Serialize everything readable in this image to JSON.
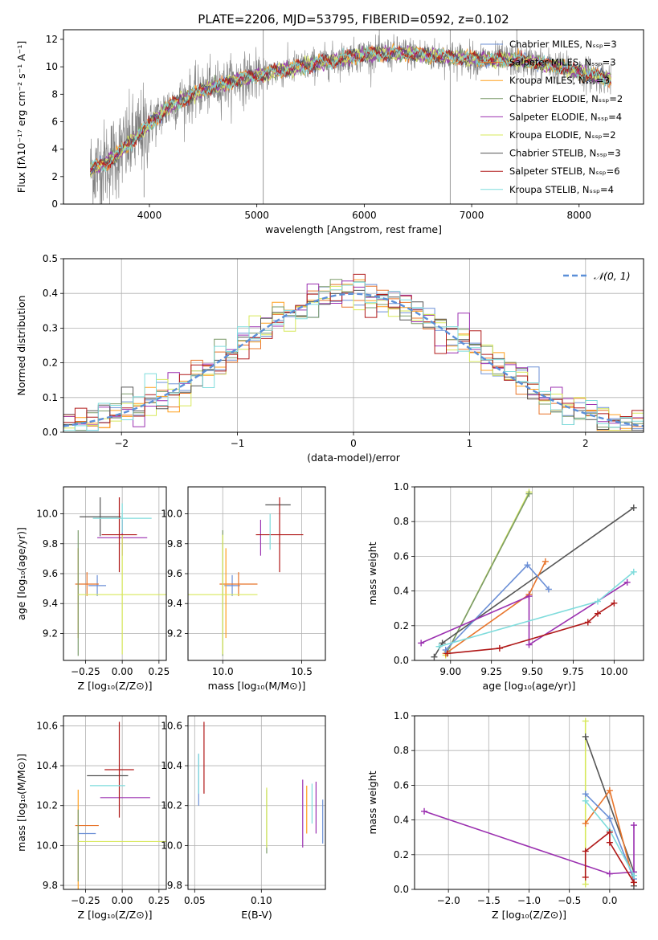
{
  "colors": {
    "chabrier_miles": "#6b8fd6",
    "salpeter_miles": "#e8742a",
    "kroupa_miles": "#ff9f1c",
    "chabrier_elodie": "#7a9a68",
    "salpeter_elodie": "#9b30b0",
    "kroupa_elodie": "#d7e85a",
    "chabrier_stelib": "#555555",
    "salpeter_stelib": "#b01818",
    "kroupa_stelib": "#7fdcdc",
    "normal_curve": "#5b8fd8",
    "grid": "#b0b0b0"
  },
  "chart_data": [
    {
      "id": "spectrum",
      "type": "line",
      "title": "PLATE=2206, MJD=53795, FIBERID=0592, z=0.102",
      "xlabel": "wavelength [Angstrom, rest frame]",
      "ylabel": "Flux [fλ10⁻¹⁷ erg cm⁻² s⁻¹ A⁻¹]",
      "xlim": [
        3200,
        8600
      ],
      "ylim": [
        0,
        12.7
      ],
      "xticks": [
        "4000",
        "5000",
        "6000",
        "7000",
        "8000"
      ],
      "yticks": [
        "0",
        "2",
        "4",
        "6",
        "8",
        "10",
        "12"
      ],
      "grid": false,
      "legend": "top-right",
      "legend_entries": [
        "Chabrier MILES, Nₛₛₚ=3",
        "Salpeter MILES, Nₛₛₚ=3",
        "Kroupa MILES, Nₛₛₚ=3",
        "Chabrier ELODIE, Nₛₛₚ=2",
        "Salpeter ELODIE, Nₛₛₚ=4",
        "Kroupa ELODIE, Nₛₛₚ=2",
        "Chabrier STELIB, Nₛₛₚ=3",
        "Salpeter STELIB, Nₛₛₚ=6",
        "Kroupa STELIB, Nₛₛₚ=4"
      ],
      "continuum": {
        "x": [
          3450,
          3600,
          3800,
          4000,
          4200,
          4500,
          4800,
          5200,
          5600,
          6000,
          6400,
          6800,
          7200,
          7400,
          7600,
          7800,
          8000,
          8200,
          8300
        ],
        "y": [
          2.5,
          3.0,
          4.3,
          5.8,
          7.2,
          8.3,
          9.0,
          9.7,
          10.3,
          10.9,
          11.0,
          10.7,
          10.5,
          10.5,
          10.3,
          10.0,
          9.6,
          9.3,
          9.1
        ]
      }
    },
    {
      "id": "residuals",
      "type": "histogram",
      "xlabel": "(data-model)/error",
      "ylabel": "Normed distribution",
      "xlim": [
        -2.5,
        2.5
      ],
      "ylim": [
        0,
        0.5
      ],
      "xticks": [
        "−2",
        "−1",
        "0",
        "1",
        "2"
      ],
      "yticks": [
        "0.0",
        "0.1",
        "0.2",
        "0.3",
        "0.4",
        "0.5"
      ],
      "grid": true,
      "legend": "top-right",
      "legend_label": "𝒩(0, 1)",
      "bin_width": 0.1,
      "bin_start": -2.5
    },
    {
      "id": "age-Z",
      "type": "errorbar",
      "xlabel": "Z [log₁₀(Z/Z⊙)]",
      "ylabel": "age  [log₁₀(age/yr)]",
      "xlim": [
        -0.4,
        0.3
      ],
      "ylim": [
        9.02,
        10.18
      ],
      "xticks": [
        "−0.25",
        "0.00",
        "0.25"
      ],
      "yticks": [
        "9.2",
        "9.4",
        "9.6",
        "9.8",
        "10.0"
      ],
      "grid": true,
      "points": [
        {
          "model": "chabrier_miles",
          "x": -0.17,
          "xerr": 0.06,
          "y": 9.52,
          "yerr": 0.07
        },
        {
          "model": "salpeter_miles",
          "x": -0.24,
          "xerr": 0.08,
          "y": 9.53,
          "yerr": 0.08
        },
        {
          "model": "kroupa_miles",
          "x": -0.3,
          "xerr": 0.0,
          "y": 9.47,
          "yerr": 0.3
        },
        {
          "model": "chabrier_elodie",
          "x": -0.3,
          "xerr": 0.0,
          "y": 9.47,
          "yerr": 0.42
        },
        {
          "model": "salpeter_elodie",
          "x": 0.0,
          "xerr": 0.17,
          "y": 9.84,
          "yerr": 0.12
        },
        {
          "model": "kroupa_elodie",
          "x": 0.0,
          "xerr": 0.3,
          "y": 9.46,
          "yerr": 0.4
        },
        {
          "model": "chabrier_stelib",
          "x": -0.15,
          "xerr": 0.14,
          "y": 9.98,
          "yerr": 0.13
        },
        {
          "model": "salpeter_stelib",
          "x": -0.02,
          "xerr": 0.12,
          "y": 9.86,
          "yerr": 0.25
        },
        {
          "model": "kroupa_stelib",
          "x": 0.0,
          "xerr": 0.2,
          "y": 9.97,
          "yerr": 0.1
        }
      ]
    },
    {
      "id": "age-mass",
      "type": "errorbar",
      "xlabel": "mass [log₁₀(M/M⊙)]",
      "ylabel": "",
      "xlim": [
        9.78,
        10.65
      ],
      "ylim": [
        9.02,
        10.18
      ],
      "xticks": [
        "10.0",
        "10.5"
      ],
      "yticks": [
        "9.2",
        "9.4",
        "9.6",
        "9.8",
        "10.0"
      ],
      "grid": true,
      "points": [
        {
          "model": "chabrier_miles",
          "x": 10.06,
          "xerr": 0.05,
          "y": 9.52,
          "yerr": 0.07
        },
        {
          "model": "salpeter_miles",
          "x": 10.1,
          "xerr": 0.12,
          "y": 9.53,
          "yerr": 0.08
        },
        {
          "model": "kroupa_miles",
          "x": 10.02,
          "xerr": 0.0,
          "y": 9.47,
          "yerr": 0.3
        },
        {
          "model": "chabrier_elodie",
          "x": 10.0,
          "xerr": 0.0,
          "y": 9.47,
          "yerr": 0.42
        },
        {
          "model": "salpeter_elodie",
          "x": 10.24,
          "xerr": 0.0,
          "y": 9.84,
          "yerr": 0.12
        },
        {
          "model": "kroupa_elodie",
          "x": 10.0,
          "xerr": 0.22,
          "y": 9.46,
          "yerr": 0.4
        },
        {
          "model": "chabrier_stelib",
          "x": 10.35,
          "xerr": 0.08,
          "y": 10.06,
          "yerr": 0.0
        },
        {
          "model": "salpeter_stelib",
          "x": 10.36,
          "xerr": 0.15,
          "y": 9.86,
          "yerr": 0.25
        },
        {
          "model": "kroupa_stelib",
          "x": 10.3,
          "xerr": 0.0,
          "y": 9.88,
          "yerr": 0.12
        }
      ]
    },
    {
      "id": "weight-age",
      "type": "line",
      "xlabel": "age  [log₁₀(age/yr)]",
      "ylabel": "mass weight",
      "xlim": [
        8.78,
        10.18
      ],
      "ylim": [
        0,
        1
      ],
      "xticks": [
        "9.00",
        "9.25",
        "9.50",
        "9.75",
        "10.00"
      ],
      "yticks": [
        "0.0",
        "0.2",
        "0.4",
        "0.6",
        "0.8",
        "1.0"
      ],
      "grid": true,
      "series": [
        {
          "model": "kroupa_elodie",
          "x": [
            8.97,
            9.48
          ],
          "y": [
            0.03,
            0.97
          ]
        },
        {
          "model": "chabrier_elodie",
          "x": [
            8.98,
            9.48
          ],
          "y": [
            0.05,
            0.96
          ]
        },
        {
          "model": "chabrier_stelib",
          "x": [
            8.9,
            8.95,
            10.12
          ],
          "y": [
            0.02,
            0.1,
            0.88
          ]
        },
        {
          "model": "salpeter_miles",
          "x": [
            8.97,
            9.48,
            9.58
          ],
          "y": [
            0.04,
            0.38,
            0.57
          ]
        },
        {
          "model": "chabrier_miles",
          "x": [
            8.97,
            9.47,
            9.6
          ],
          "y": [
            0.06,
            0.55,
            0.41
          ]
        },
        {
          "model": "salpeter_elodie",
          "x": [
            8.82,
            9.48,
            9.48,
            10.08
          ],
          "y": [
            0.1,
            0.37,
            0.09,
            0.45
          ]
        },
        {
          "model": "kroupa_stelib",
          "x": [
            8.93,
            9.9,
            10.12
          ],
          "y": [
            0.08,
            0.34,
            0.51
          ]
        },
        {
          "model": "salpeter_stelib",
          "x": [
            8.98,
            9.3,
            9.84,
            9.9,
            10.0
          ],
          "y": [
            0.04,
            0.07,
            0.22,
            0.27,
            0.33
          ]
        }
      ]
    },
    {
      "id": "mass-Z",
      "type": "errorbar",
      "xlabel": "Z [log₁₀(Z/Z⊙)]",
      "ylabel": "mass [log₁₀(M/M⊙)]",
      "xlim": [
        -0.4,
        0.3
      ],
      "ylim": [
        9.78,
        10.65
      ],
      "xticks": [
        "−0.25",
        "0.00",
        "0.25"
      ],
      "yticks": [
        "9.8",
        "10.0",
        "10.2",
        "10.4",
        "10.6"
      ],
      "grid": true,
      "points": [
        {
          "model": "chabrier_miles",
          "x": -0.24,
          "xerr": 0.06,
          "y": 10.06,
          "yerr": 0.0
        },
        {
          "model": "salpeter_miles",
          "x": -0.24,
          "xerr": 0.08,
          "y": 10.1,
          "yerr": 0.0
        },
        {
          "model": "kroupa_miles",
          "x": -0.3,
          "xerr": 0.0,
          "y": 10.02,
          "yerr": 0.26
        },
        {
          "model": "chabrier_elodie",
          "x": -0.3,
          "xerr": 0.0,
          "y": 10.0,
          "yerr": 0.18
        },
        {
          "model": "salpeter_elodie",
          "x": 0.02,
          "xerr": 0.17,
          "y": 10.24,
          "yerr": 0.0
        },
        {
          "model": "kroupa_elodie",
          "x": 0.0,
          "xerr": 0.3,
          "y": 10.02,
          "yerr": 0.0
        },
        {
          "model": "chabrier_stelib",
          "x": -0.1,
          "xerr": 0.14,
          "y": 10.35,
          "yerr": 0.0
        },
        {
          "model": "salpeter_stelib",
          "x": -0.02,
          "xerr": 0.1,
          "y": 10.38,
          "yerr": 0.24
        },
        {
          "model": "kroupa_stelib",
          "x": -0.1,
          "xerr": 0.12,
          "y": 10.3,
          "yerr": 0.0
        }
      ]
    },
    {
      "id": "mass-EBV",
      "type": "errorbar",
      "xlabel": "E(B-V)",
      "ylabel": "",
      "xlim": [
        0.045,
        0.148
      ],
      "ylim": [
        9.78,
        10.65
      ],
      "xticks": [
        "0.05",
        "0.10"
      ],
      "yticks": [
        "9.8",
        "10.0",
        "10.2",
        "10.4",
        "10.6"
      ],
      "grid": true,
      "points": [
        {
          "model": "chabrier_miles",
          "x": 0.053,
          "xerr": 0.0,
          "y": 10.33,
          "yerr": 0.13
        },
        {
          "model": "kroupa_stelib",
          "x": 0.053,
          "xerr": 0.0,
          "y": 10.36,
          "yerr": 0.1
        },
        {
          "model": "salpeter_stelib",
          "x": 0.057,
          "xerr": 0.0,
          "y": 10.44,
          "yerr": 0.18
        },
        {
          "model": "chabrier_elodie",
          "x": 0.104,
          "xerr": 0.0,
          "y": 10.12,
          "yerr": 0.16
        },
        {
          "model": "kroupa_elodie",
          "x": 0.104,
          "xerr": 0.0,
          "y": 10.14,
          "yerr": 0.15
        },
        {
          "model": "salpeter_elodie",
          "x": 0.131,
          "xerr": 0.0,
          "y": 10.16,
          "yerr": 0.17
        },
        {
          "model": "kroupa_miles",
          "x": 0.134,
          "xerr": 0.0,
          "y": 10.18,
          "yerr": 0.12
        },
        {
          "model": "salpeter_elodie",
          "x": 0.141,
          "xerr": 0.0,
          "y": 10.19,
          "yerr": 0.13
        },
        {
          "model": "kroupa_stelib",
          "x": 0.138,
          "xerr": 0.0,
          "y": 10.21,
          "yerr": 0.1
        },
        {
          "model": "chabrier_miles",
          "x": 0.146,
          "xerr": 0.0,
          "y": 10.12,
          "yerr": 0.11
        }
      ]
    },
    {
      "id": "weight-Z",
      "type": "line",
      "xlabel": "Z [log₁₀(Z/Z⊙)]",
      "ylabel": "mass weight",
      "xlim": [
        -2.42,
        0.42
      ],
      "ylim": [
        0,
        1
      ],
      "xticks": [
        "−2.0",
        "−1.5",
        "−1.0",
        "−0.5",
        "0.0"
      ],
      "yticks": [
        "0.0",
        "0.2",
        "0.4",
        "0.6",
        "0.8",
        "1.0"
      ],
      "grid": true,
      "series": [
        {
          "model": "kroupa_elodie",
          "x": [
            -0.3,
            -0.3
          ],
          "y": [
            0.03,
            0.97
          ]
        },
        {
          "model": "chabrier_stelib",
          "x": [
            -0.3,
            0.3,
            0.3
          ],
          "y": [
            0.88,
            0.1,
            0.02
          ]
        },
        {
          "model": "salpeter_miles",
          "x": [
            -0.3,
            0.0,
            0.3
          ],
          "y": [
            0.38,
            0.57,
            0.04
          ]
        },
        {
          "model": "chabrier_miles",
          "x": [
            -0.3,
            0.0,
            0.3
          ],
          "y": [
            0.55,
            0.41,
            0.06
          ]
        },
        {
          "model": "salpeter_elodie",
          "x": [
            -2.3,
            0.0,
            0.3,
            0.3
          ],
          "y": [
            0.45,
            0.09,
            0.1,
            0.37
          ]
        },
        {
          "model": "kroupa_stelib",
          "x": [
            -0.3,
            0.0,
            0.3
          ],
          "y": [
            0.51,
            0.34,
            0.08
          ]
        },
        {
          "model": "salpeter_stelib",
          "x": [
            -0.3,
            -0.3,
            0.0,
            0.0,
            0.3
          ],
          "y": [
            0.07,
            0.22,
            0.33,
            0.27,
            0.04
          ]
        }
      ]
    }
  ]
}
